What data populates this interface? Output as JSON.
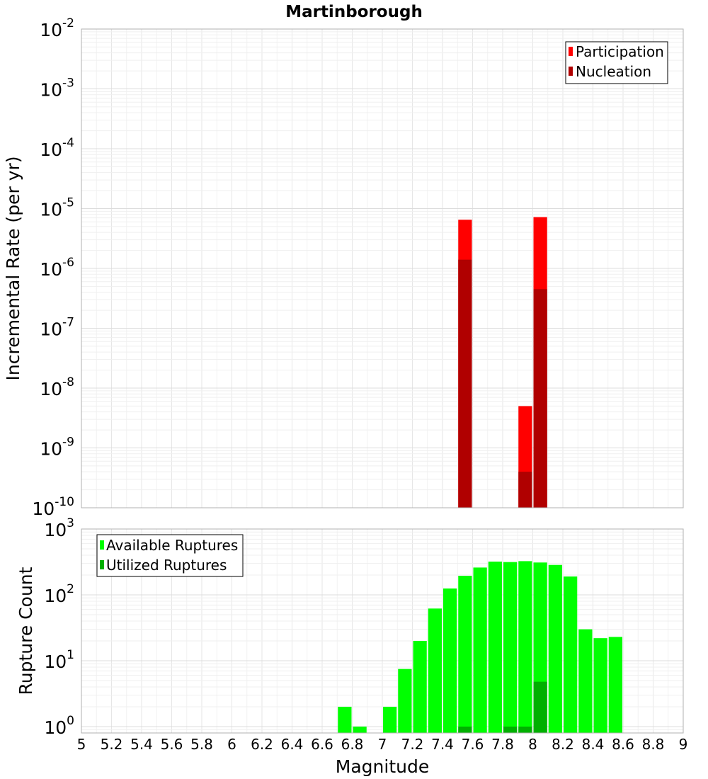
{
  "chart_data": [
    {
      "type": "bar",
      "title": "Martinborough",
      "ylabel": "Incremental Rate (per yr)",
      "xlabel": "",
      "y_scale": "log",
      "ylim": [
        1e-10,
        0.01
      ],
      "xlim": [
        5,
        9
      ],
      "grid": true,
      "legend_placement": "top-right",
      "bar_width": 0.1,
      "series": [
        {
          "name": "Participation",
          "color": "#ff0000",
          "points": [
            {
              "x": 7.55,
              "y": 6.5e-06
            },
            {
              "x": 7.95,
              "y": 5e-09
            },
            {
              "x": 8.05,
              "y": 7.2e-06
            }
          ]
        },
        {
          "name": "Nucleation",
          "color": "#b00000",
          "points": [
            {
              "x": 7.55,
              "y": 1.4e-06
            },
            {
              "x": 7.95,
              "y": 4e-10
            },
            {
              "x": 8.05,
              "y": 4.5e-07
            }
          ]
        }
      ]
    },
    {
      "type": "bar",
      "title": "",
      "ylabel": "Rupture Count",
      "xlabel": "Magnitude",
      "y_scale": "log",
      "ylim": [
        0.8,
        1000
      ],
      "xlim": [
        5,
        9
      ],
      "x_ticks": [
        "5",
        "5.2",
        "5.4",
        "5.6",
        "5.8",
        "6",
        "6.2",
        "6.4",
        "6.6",
        "6.8",
        "7",
        "7.2",
        "7.4",
        "7.6",
        "7.8",
        "8",
        "8.2",
        "8.4",
        "8.6",
        "8.8",
        "9"
      ],
      "grid": true,
      "legend_placement": "top-left",
      "bar_width": 0.1,
      "series": [
        {
          "name": "Available Ruptures",
          "color": "#00ff00",
          "points": [
            {
              "x": 6.75,
              "y": 2
            },
            {
              "x": 6.85,
              "y": 1
            },
            {
              "x": 7.05,
              "y": 2
            },
            {
              "x": 7.15,
              "y": 7.5
            },
            {
              "x": 7.25,
              "y": 20
            },
            {
              "x": 7.35,
              "y": 62
            },
            {
              "x": 7.45,
              "y": 125
            },
            {
              "x": 7.55,
              "y": 195
            },
            {
              "x": 7.65,
              "y": 260
            },
            {
              "x": 7.75,
              "y": 320
            },
            {
              "x": 7.85,
              "y": 315
            },
            {
              "x": 7.95,
              "y": 325
            },
            {
              "x": 8.05,
              "y": 310
            },
            {
              "x": 8.15,
              "y": 285
            },
            {
              "x": 8.25,
              "y": 190
            },
            {
              "x": 8.35,
              "y": 30
            },
            {
              "x": 8.45,
              "y": 22
            },
            {
              "x": 8.55,
              "y": 23
            }
          ]
        },
        {
          "name": "Utilized Ruptures",
          "color": "#00b000",
          "points": [
            {
              "x": 7.55,
              "y": 1
            },
            {
              "x": 7.85,
              "y": 1
            },
            {
              "x": 7.95,
              "y": 1
            },
            {
              "x": 8.05,
              "y": 4.8
            }
          ]
        }
      ]
    }
  ]
}
